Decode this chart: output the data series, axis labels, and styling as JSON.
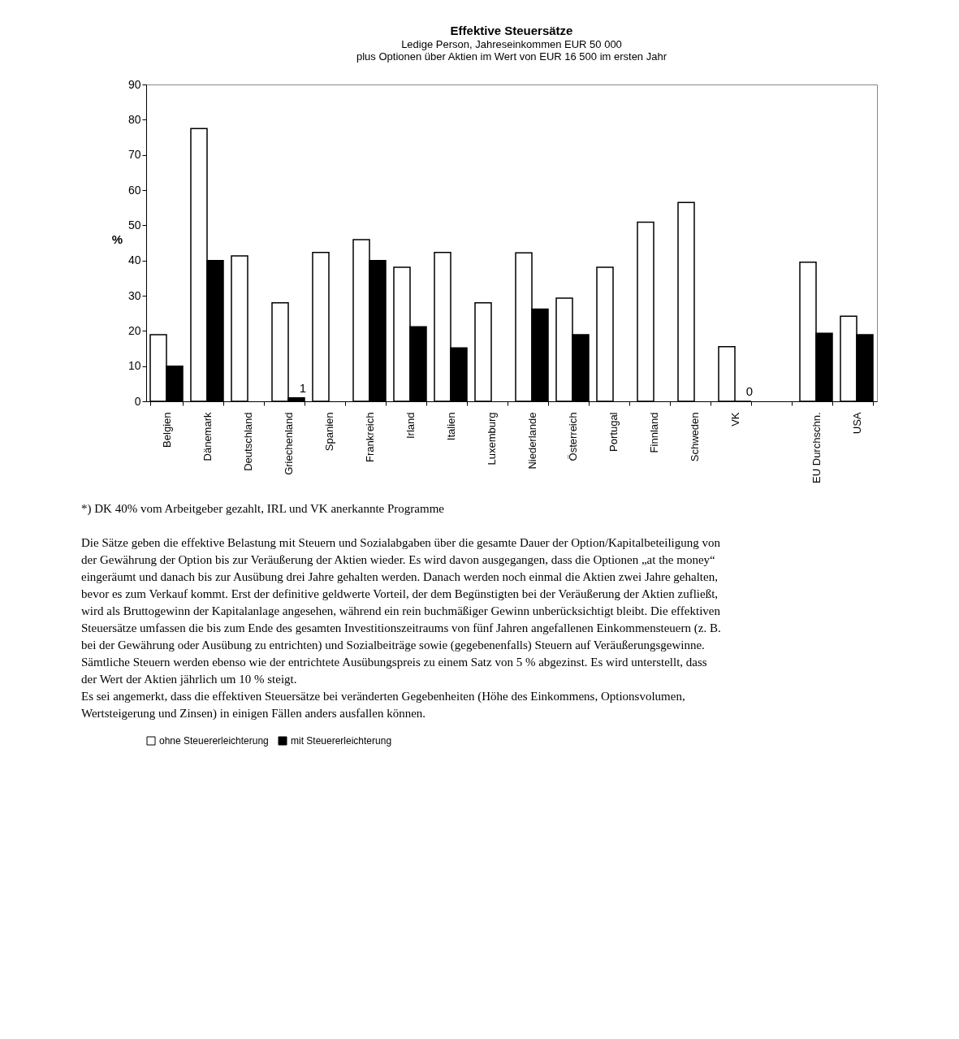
{
  "chart_data": {
    "type": "bar",
    "title": "Effektive Steuersätze",
    "subtitle": "Ledige Person, Jahreseinkommen EUR 50 000\nplus Optionen über Aktien im Wert von EUR 16 500 im ersten Jahr",
    "ylabel": "%",
    "categories": [
      "Belgien",
      "Dänemark",
      "Deutschland",
      "Griechenland",
      "Spanien",
      "Frankreich",
      "Irland",
      "Italien",
      "Luxemburg",
      "Niederlande",
      "Österreich",
      "Portugal",
      "Finnland",
      "Schweden",
      "VK",
      null,
      "EU Durchschn.",
      "USA"
    ],
    "series": [
      {
        "name": "ohne Steuererleichterung",
        "color": "#ffffff",
        "values": [
          18.9,
          77.5,
          41.3,
          28,
          42.3,
          45.9,
          38.1,
          42.3,
          28,
          42.2,
          29.3,
          38.1,
          50.9,
          56.5,
          15.5,
          null,
          39.5,
          24.2
        ]
      },
      {
        "name": "mit Steuererleichterung",
        "color": "#000000",
        "values": [
          10,
          40,
          null,
          1,
          null,
          40,
          21.2,
          15.2,
          null,
          26.2,
          18.9,
          null,
          null,
          null,
          0,
          null,
          19.3,
          18.9
        ],
        "value_labels": [
          null,
          null,
          null,
          "1",
          null,
          null,
          null,
          null,
          null,
          null,
          null,
          null,
          null,
          null,
          "0",
          null,
          null,
          null
        ]
      }
    ],
    "ylim": [
      0,
      90
    ],
    "yticks": [
      0,
      10,
      20,
      30,
      40,
      50,
      60,
      70,
      80,
      90
    ],
    "grid": false,
    "legend": "bottom",
    "annotations": [
      "*) DK 40% vom Arbeitgeber gezahlt, IRL und VK anerkannte Programme",
      "Die Sätze geben die effektive Belastung mit Steuern und Sozialabgaben über die gesamte Dauer der Option/Kapitalbeteiligung von der Gewährung der Option bis zur Veräußerung der Aktien wieder. Es wird davon ausgegangen, dass die Optionen „at the money“ eingeräumt und danach bis zur Ausübung drei Jahre gehalten werden. Danach werden noch einmal die Aktien zwei Jahre gehalten, bevor es zum Verkauf kommt. Erst der definitive geldwerte Vorteil, der dem Begünstigten bei der Veräußerung der Aktien zufließt, wird als Bruttogewinn der Kapitalanlage angesehen, während ein rein buchmäßiger Gewinn unberücksichtigt bleibt. Die effektiven Steuersätze umfassen die bis zum Ende des gesamten Investitionszeitraums von fünf Jahren angefallenen Einkommensteuern (z. B. bei der Gewährung oder Ausübung zu entrichten) und Sozialbeiträge sowie (gegebenenfalls) Steuern auf Veräußerungsgewinne. Sämtliche Steuern werden ebenso wie der entrichtete Ausübungspreis zu einem Satz von 5 % abgezinst. Es wird unterstellt, dass der Wert der Aktien jährlich um 10 % steigt.",
      "Es sei angemerkt, dass die effektiven Steuersätze bei veränderten Gegebenheiten (Höhe des Einkommens, Optionsvolumen, Wertsteigerung und Zinsen) in einigen Fällen anders ausfallen können."
    ]
  }
}
